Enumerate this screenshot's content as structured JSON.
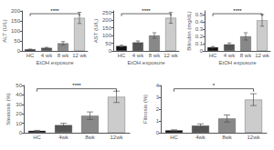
{
  "chart_data": [
    {
      "type": "bar",
      "ylabel": "ALT (U/L)",
      "xlabel": "EtOH exposure",
      "categories": [
        "HC",
        "4 wk",
        "8 wk",
        "12 wk"
      ],
      "values": [
        8,
        15,
        38,
        165
      ],
      "errors": [
        1,
        3,
        9,
        28
      ],
      "colors": [
        "#111111",
        "#555555",
        "#888888",
        "#cccccc"
      ],
      "ylim": [
        0,
        200
      ],
      "yticks": [
        0,
        50,
        100,
        150,
        200
      ],
      "grid": false,
      "annotations": [
        {
          "text": "****",
          "x": [
            "HC",
            "12 wk"
          ]
        }
      ]
    },
    {
      "type": "bar",
      "ylabel": "AST (U/L)",
      "xlabel": "EtOH exposure",
      "categories": [
        "HC",
        "4 wk",
        "8 wk",
        "12 wk"
      ],
      "values": [
        32,
        55,
        100,
        215
      ],
      "errors": [
        5,
        10,
        18,
        35
      ],
      "colors": [
        "#111111",
        "#555555",
        "#888888",
        "#cccccc"
      ],
      "ylim": [
        0,
        260
      ],
      "yticks": [
        0,
        50,
        100,
        150,
        200,
        250
      ],
      "grid": false,
      "annotations": [
        {
          "text": "****",
          "x": [
            "HC",
            "12 wk"
          ]
        }
      ]
    },
    {
      "type": "bar",
      "ylabel": "Bilirubin (mg/dL)",
      "xlabel": "EtOH exposure",
      "categories": [
        "HC",
        "4 wk",
        "8 wk",
        "12 wk"
      ],
      "values": [
        0.05,
        0.09,
        0.2,
        0.42
      ],
      "errors": [
        0.01,
        0.02,
        0.05,
        0.08
      ],
      "colors": [
        "#111111",
        "#555555",
        "#888888",
        "#cccccc"
      ],
      "ylim": [
        0,
        0.55
      ],
      "yticks": [
        0,
        0.1,
        0.2,
        0.3,
        0.4,
        0.5
      ],
      "grid": false,
      "annotations": [
        {
          "text": "****",
          "x": [
            "HC",
            "12 wk"
          ]
        }
      ]
    },
    {
      "type": "bar",
      "ylabel": "Steatosis (%)",
      "categories": [
        "HC",
        "4wk",
        "8wk",
        "12wk"
      ],
      "values": [
        2,
        8,
        18,
        38
      ],
      "errors": [
        0.5,
        2,
        4,
        6
      ],
      "colors": [
        "#111111",
        "#555555",
        "#888888",
        "#cccccc"
      ],
      "ylim": [
        0,
        50
      ],
      "yticks": [
        0,
        10,
        20,
        30,
        40,
        50
      ],
      "grid": false,
      "annotations": [
        {
          "text": "****",
          "x": [
            "HC",
            "12wk"
          ]
        }
      ]
    },
    {
      "type": "bar",
      "ylabel": "Fibrosis (%)",
      "categories": [
        "HC",
        "4wk",
        "8wk",
        "12wk"
      ],
      "values": [
        0.2,
        0.6,
        1.2,
        2.8
      ],
      "errors": [
        0.05,
        0.15,
        0.3,
        0.5
      ],
      "colors": [
        "#111111",
        "#555555",
        "#888888",
        "#cccccc"
      ],
      "ylim": [
        0,
        4
      ],
      "yticks": [
        0,
        1,
        2,
        3,
        4
      ],
      "grid": false,
      "annotations": [
        {
          "text": "*",
          "x": [
            "HC",
            "12wk"
          ]
        }
      ]
    }
  ]
}
